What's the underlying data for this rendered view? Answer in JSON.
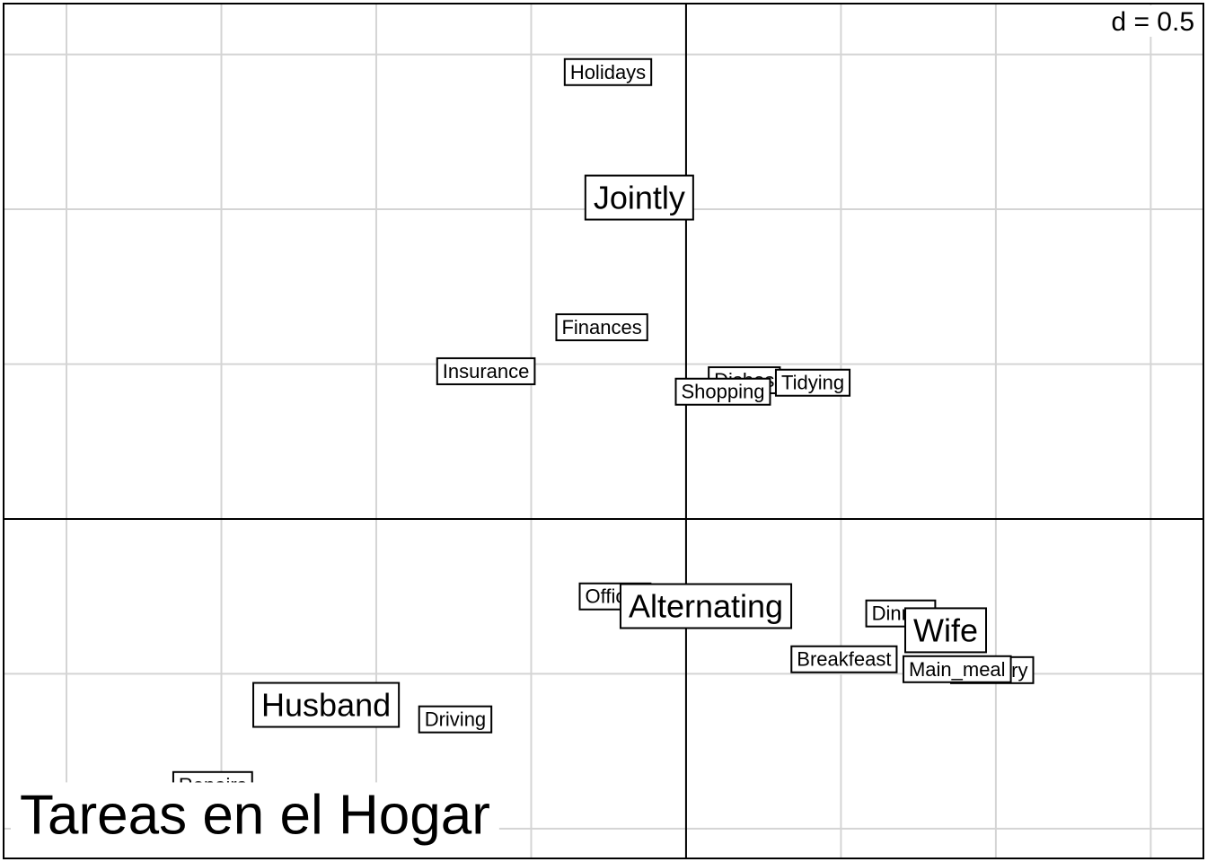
{
  "chart_data": {
    "type": "scatter",
    "title": "Tareas en el Hogar",
    "scale_label": "d = 0.5",
    "xlim": [
      -2.203,
      1.67
    ],
    "ylim": [
      -1.096,
      1.664
    ],
    "xticks": [
      -2,
      -1.5,
      -1,
      -0.5,
      0,
      0.5,
      1,
      1.5
    ],
    "yticks": [
      -1,
      -0.5,
      0,
      0.5,
      1,
      1.5
    ],
    "grid": true,
    "series": [
      {
        "labels": [
          "Holidays",
          "Finances",
          "Insurance",
          "Dishes",
          "Tidying",
          "Shopping",
          "Official",
          "Driving",
          "Repairs",
          "Dinner",
          "Breakfeast",
          "Laundry",
          "Main_meal"
        ],
        "x": [
          -0.252,
          -0.272,
          -0.646,
          0.188,
          0.409,
          0.119,
          -0.229,
          -0.745,
          -1.528,
          0.693,
          0.51,
          0.988,
          0.875
        ],
        "y": [
          1.438,
          0.614,
          0.472,
          0.443,
          0.435,
          0.406,
          -0.255,
          -0.652,
          -0.864,
          -0.31,
          -0.458,
          -0.493,
          -0.49
        ]
      },
      {
        "labels": [
          "Jointly",
          "Alternating",
          "Wife",
          "Husband"
        ],
        "x": [
          -0.151,
          0.064,
          0.838,
          -1.162
        ],
        "y": [
          1.029,
          -0.29,
          -0.368,
          -0.609
        ]
      }
    ]
  }
}
